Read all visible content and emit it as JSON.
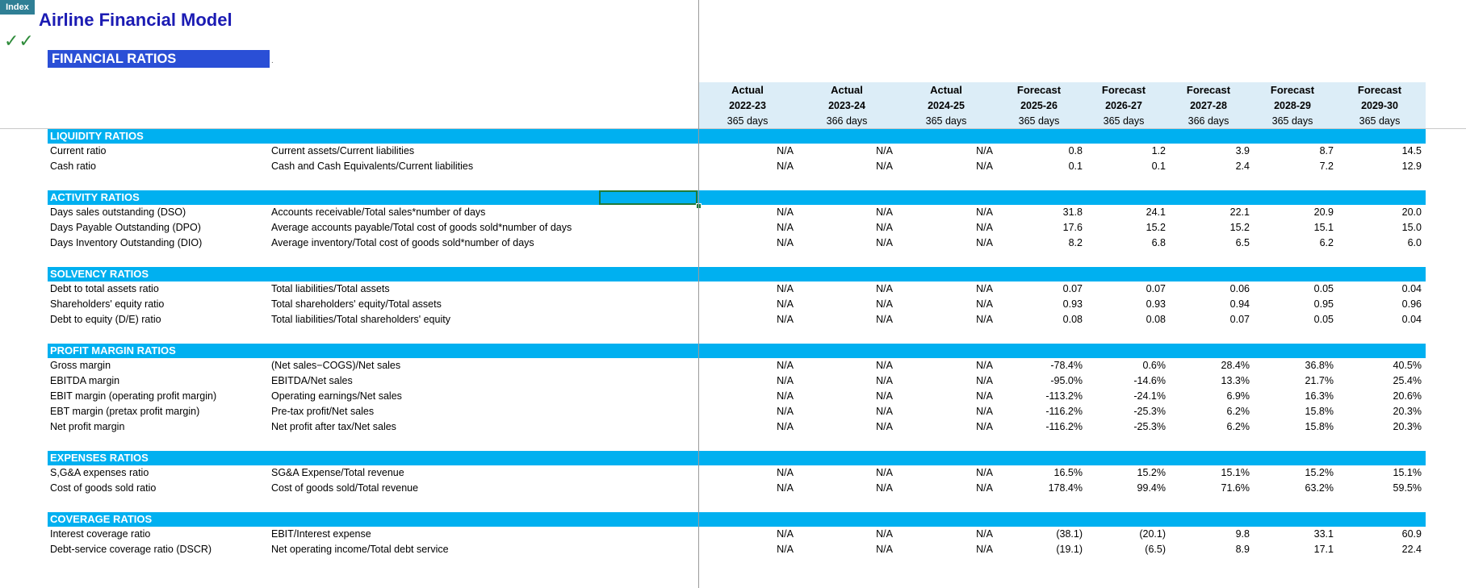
{
  "index_button": "Index",
  "title": "Airline Financial Model",
  "checkmarks": "✓✓",
  "section_title": "FINANCIAL RATIOS",
  "dot": ".",
  "columns": [
    {
      "type": "Actual",
      "year": "2022-23",
      "days": "365 days"
    },
    {
      "type": "Actual",
      "year": "2023-24",
      "days": "366 days"
    },
    {
      "type": "Actual",
      "year": "2024-25",
      "days": "365 days"
    },
    {
      "type": "Forecast",
      "year": "2025-26",
      "days": "365 days"
    },
    {
      "type": "Forecast",
      "year": "2026-27",
      "days": "365 days"
    },
    {
      "type": "Forecast",
      "year": "2027-28",
      "days": "366 days"
    },
    {
      "type": "Forecast",
      "year": "2028-29",
      "days": "365 days"
    },
    {
      "type": "Forecast",
      "year": "2029-30",
      "days": "365 days"
    }
  ],
  "sections": [
    {
      "label": "LIQUIDITY RATIOS",
      "rows": [
        {
          "name": "Current ratio",
          "formula": "Current assets/Current liabilities",
          "values": [
            "N/A",
            "N/A",
            "N/A",
            "0.8",
            "1.2",
            "3.9",
            "8.7",
            "14.5"
          ]
        },
        {
          "name": "Cash ratio",
          "formula": "Cash and Cash Equivalents/Current liabilities",
          "values": [
            "N/A",
            "N/A",
            "N/A",
            "0.1",
            "0.1",
            "2.4",
            "7.2",
            "12.9"
          ]
        }
      ]
    },
    {
      "label": "ACTIVITY RATIOS",
      "rows": [
        {
          "name": "Days sales outstanding (DSO)",
          "formula": "Accounts receivable/Total sales*number of days",
          "values": [
            "N/A",
            "N/A",
            "N/A",
            "31.8",
            "24.1",
            "22.1",
            "20.9",
            "20.0"
          ]
        },
        {
          "name": "Days Payable Outstanding (DPO)",
          "formula": "Average accounts payable/Total cost of goods sold*number of days",
          "values": [
            "N/A",
            "N/A",
            "N/A",
            "17.6",
            "15.2",
            "15.2",
            "15.1",
            "15.0"
          ]
        },
        {
          "name": "Days Inventory Outstanding (DIO)",
          "formula": "Average inventory/Total cost of goods sold*number of days",
          "values": [
            "N/A",
            "N/A",
            "N/A",
            "8.2",
            "6.8",
            "6.5",
            "6.2",
            "6.0"
          ]
        }
      ]
    },
    {
      "label": "SOLVENCY RATIOS",
      "rows": [
        {
          "name": "Debt to total assets ratio",
          "formula": "Total liabilities/Total assets",
          "values": [
            "N/A",
            "N/A",
            "N/A",
            "0.07",
            "0.07",
            "0.06",
            "0.05",
            "0.04"
          ]
        },
        {
          "name": "Shareholders' equity ratio",
          "formula": "Total shareholders' equity/Total assets",
          "values": [
            "N/A",
            "N/A",
            "N/A",
            "0.93",
            "0.93",
            "0.94",
            "0.95",
            "0.96"
          ]
        },
        {
          "name": "Debt to equity (D/E) ratio",
          "formula": "Total liabilities/Total shareholders' equity",
          "values": [
            "N/A",
            "N/A",
            "N/A",
            "0.08",
            "0.08",
            "0.07",
            "0.05",
            "0.04"
          ]
        }
      ]
    },
    {
      "label": "PROFIT MARGIN RATIOS",
      "rows": [
        {
          "name": "Gross margin",
          "formula": "(Net sales−COGS)/Net sales",
          "values": [
            "N/A",
            "N/A",
            "N/A",
            "-78.4%",
            "0.6%",
            "28.4%",
            "36.8%",
            "40.5%"
          ]
        },
        {
          "name": "EBITDA margin",
          "formula": "EBITDA/Net sales",
          "values": [
            "N/A",
            "N/A",
            "N/A",
            "-95.0%",
            "-14.6%",
            "13.3%",
            "21.7%",
            "25.4%"
          ]
        },
        {
          "name": "EBIT margin (operating profit margin)",
          "formula": "Operating earnings/Net sales",
          "values": [
            "N/A",
            "N/A",
            "N/A",
            "-113.2%",
            "-24.1%",
            "6.9%",
            "16.3%",
            "20.6%"
          ]
        },
        {
          "name": "EBT margin (pretax profit margin)",
          "formula": "Pre-tax profit/Net sales",
          "values": [
            "N/A",
            "N/A",
            "N/A",
            "-116.2%",
            "-25.3%",
            "6.2%",
            "15.8%",
            "20.3%"
          ]
        },
        {
          "name": "Net profit margin",
          "formula": "Net profit after tax/Net sales",
          "values": [
            "N/A",
            "N/A",
            "N/A",
            "-116.2%",
            "-25.3%",
            "6.2%",
            "15.8%",
            "20.3%"
          ]
        }
      ]
    },
    {
      "label": "EXPENSES RATIOS",
      "rows": [
        {
          "name": "S,G&A expenses ratio",
          "formula": "SG&A Expense/Total revenue",
          "values": [
            "N/A",
            "N/A",
            "N/A",
            "16.5%",
            "15.2%",
            "15.1%",
            "15.2%",
            "15.1%"
          ]
        },
        {
          "name": "Cost of goods sold ratio",
          "formula": "Cost of goods sold/Total revenue",
          "values": [
            "N/A",
            "N/A",
            "N/A",
            "178.4%",
            "99.4%",
            "71.6%",
            "63.2%",
            "59.5%"
          ]
        }
      ]
    },
    {
      "label": "COVERAGE RATIOS",
      "rows": [
        {
          "name": "Interest coverage ratio",
          "formula": "EBIT/Interest expense",
          "values": [
            "N/A",
            "N/A",
            "N/A",
            "(38.1)",
            "(20.1)",
            "9.8",
            "33.1",
            "60.9"
          ]
        },
        {
          "name": "Debt-service coverage ratio (DSCR)",
          "formula": "Net operating income/Total debt service",
          "values": [
            "N/A",
            "N/A",
            "N/A",
            "(19.1)",
            "(6.5)",
            "8.9",
            "17.1",
            "22.4"
          ]
        }
      ]
    }
  ]
}
